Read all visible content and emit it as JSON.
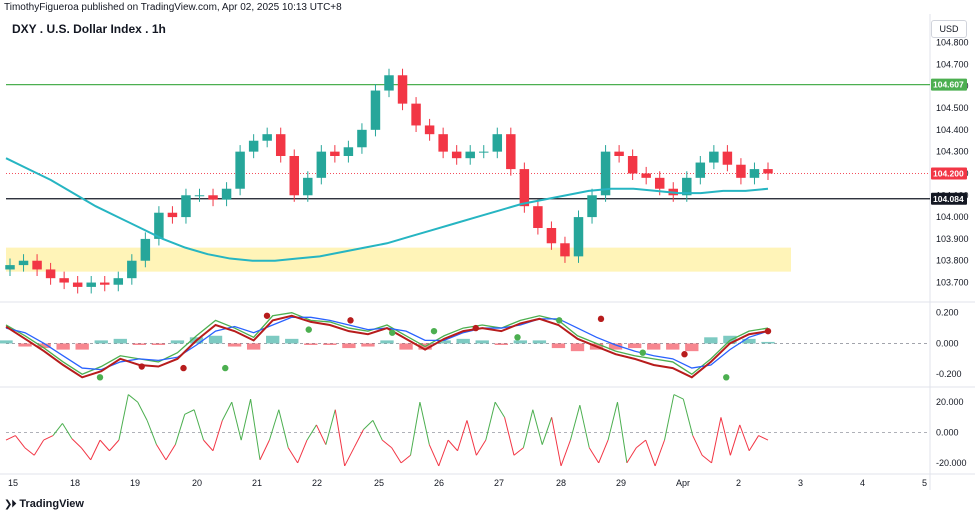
{
  "header": {
    "published": "TimothyFigueroa published on TradingView.com, Apr 02, 2025 10:13 UTC+8"
  },
  "currency_button": "USD",
  "footer": {
    "logo_icon": "tradingview-logo-icon",
    "brand": "TradingView"
  },
  "chart_data": [
    {
      "type": "candlestick",
      "title": "DXY . U.S. Dollar Index . 1h",
      "interval": "1h",
      "y_range": [
        103.62,
        104.83
      ],
      "y_ticks": [
        103.7,
        103.8,
        103.9,
        104.0,
        104.1,
        104.2,
        104.3,
        104.4,
        104.5,
        104.6,
        104.7,
        104.8
      ],
      "y_tick_labels": [
        "103.700",
        "103.800",
        "103.900",
        "104.000",
        "104.100",
        "104.200",
        "104.300",
        "104.400",
        "104.500",
        "104.600",
        "104.700",
        "104.800"
      ],
      "x_ticks": [
        "15",
        "18",
        "19",
        "20",
        "21",
        "22",
        "25",
        "26",
        "27",
        "28",
        "29",
        "Apr",
        "2",
        "3",
        "4",
        "5"
      ],
      "price_lines": [
        {
          "value": 104.607,
          "label": "104.607",
          "color": "#4caf50",
          "style": "solid"
        },
        {
          "value": 104.2,
          "label": "104.200",
          "color": "#f23645",
          "style": "dotted"
        },
        {
          "value": 104.084,
          "label": "104.084",
          "color": "#131722",
          "style": "solid"
        }
      ],
      "support_zone": {
        "from": 103.75,
        "to": 103.86,
        "color": "#fff3b0"
      },
      "moving_average": {
        "color": "#26b5c2",
        "values": [
          104.27,
          104.22,
          104.17,
          104.11,
          104.05,
          104.0,
          103.95,
          103.9,
          103.86,
          103.83,
          103.81,
          103.8,
          103.8,
          103.81,
          103.82,
          103.84,
          103.86,
          103.88,
          103.91,
          103.94,
          103.97,
          104.0,
          104.03,
          104.06,
          104.08,
          104.1,
          104.12,
          104.13,
          104.13,
          104.12,
          104.11,
          104.11,
          104.12,
          104.12,
          104.13
        ]
      },
      "candles": {
        "up_color": "#26a69a",
        "down_color": "#f23645",
        "close": [
          103.78,
          103.8,
          103.76,
          103.72,
          103.7,
          103.68,
          103.7,
          103.69,
          103.72,
          103.8,
          103.9,
          104.02,
          104.0,
          104.1,
          104.1,
          104.08,
          104.13,
          104.3,
          104.35,
          104.38,
          104.28,
          104.1,
          104.18,
          104.3,
          104.28,
          104.32,
          104.4,
          104.58,
          104.65,
          104.52,
          104.42,
          104.38,
          104.3,
          104.27,
          104.3,
          104.3,
          104.38,
          104.22,
          104.05,
          103.95,
          103.88,
          103.82,
          104.0,
          104.1,
          104.3,
          104.28,
          104.2,
          104.18,
          104.13,
          104.1,
          104.18,
          104.25,
          104.3,
          104.24,
          104.18,
          104.22,
          104.2
        ]
      }
    },
    {
      "type": "line",
      "title": "",
      "y_range": [
        -0.27,
        0.25
      ],
      "y_ticks": [
        -0.2,
        0.0,
        0.2
      ],
      "y_tick_labels": [
        "-0.200",
        "0.000",
        "0.200"
      ],
      "series": [
        {
          "color": "#4caf50",
          "values": [
            0.12,
            0.05,
            -0.03,
            -0.12,
            -0.2,
            -0.15,
            -0.08,
            -0.1,
            -0.12,
            -0.06,
            0.05,
            0.15,
            0.1,
            0.04,
            0.18,
            0.2,
            0.15,
            0.14,
            0.1,
            0.08,
            0.12,
            0.05,
            -0.02,
            0.05,
            0.1,
            0.12,
            0.1,
            0.15,
            0.18,
            0.15,
            0.05,
            0.0,
            -0.05,
            -0.08,
            -0.1,
            -0.12,
            -0.2,
            -0.1,
            0.02,
            0.08,
            0.1
          ]
        },
        {
          "color": "#2962ff",
          "values": [
            0.1,
            0.07,
            0.0,
            -0.08,
            -0.16,
            -0.17,
            -0.12,
            -0.1,
            -0.11,
            -0.09,
            -0.01,
            0.08,
            0.11,
            0.07,
            0.12,
            0.17,
            0.17,
            0.15,
            0.12,
            0.09,
            0.1,
            0.08,
            0.02,
            0.02,
            0.07,
            0.1,
            0.1,
            0.12,
            0.16,
            0.16,
            0.1,
            0.04,
            -0.01,
            -0.05,
            -0.08,
            -0.1,
            -0.16,
            -0.14,
            -0.04,
            0.04,
            0.08
          ]
        },
        {
          "color": "#b71c1c",
          "values": [
            0.11,
            0.03,
            -0.05,
            -0.14,
            -0.22,
            -0.18,
            -0.1,
            -0.14,
            -0.15,
            -0.1,
            0.02,
            0.12,
            0.08,
            0.02,
            0.15,
            0.18,
            0.14,
            0.12,
            0.08,
            0.06,
            0.1,
            0.03,
            -0.04,
            0.03,
            0.08,
            0.1,
            0.08,
            0.13,
            0.16,
            0.12,
            0.03,
            -0.02,
            -0.07,
            -0.1,
            -0.14,
            -0.16,
            -0.22,
            -0.12,
            0.0,
            0.06,
            0.08
          ]
        }
      ],
      "histogram": {
        "up_color": "#26a69a",
        "down_color": "#f23645",
        "values": [
          0.02,
          -0.02,
          -0.03,
          -0.04,
          -0.04,
          0.02,
          0.03,
          -0.01,
          -0.01,
          0.02,
          0.04,
          0.05,
          -0.02,
          -0.04,
          0.05,
          0.03,
          -0.01,
          -0.01,
          -0.03,
          -0.02,
          0.02,
          -0.04,
          -0.04,
          0.02,
          0.03,
          0.02,
          -0.01,
          0.02,
          0.02,
          -0.03,
          -0.05,
          -0.04,
          -0.04,
          -0.03,
          -0.04,
          -0.04,
          -0.05,
          0.04,
          0.05,
          0.03,
          0.01
        ]
      },
      "markers": {
        "values": [
          -0.22,
          -0.15,
          -0.16,
          -0.16,
          0.18,
          0.09,
          0.15,
          0.07,
          0.08,
          0.1,
          0.04,
          0.15,
          0.16,
          -0.06,
          -0.07,
          -0.22,
          0.08
        ],
        "colors": [
          "#4caf50",
          "#b71c1c",
          "#b71c1c",
          "#4caf50",
          "#b71c1c",
          "#4caf50",
          "#b71c1c",
          "#4caf50",
          "#4caf50",
          "#b71c1c",
          "#4caf50",
          "#4caf50",
          "#b71c1c",
          "#4caf50",
          "#b71c1c",
          "#4caf50",
          "#b71c1c"
        ]
      }
    },
    {
      "type": "line",
      "title": "",
      "y_range": [
        -26,
        28
      ],
      "y_ticks": [
        -20,
        0,
        20
      ],
      "y_tick_labels": [
        "-20.000",
        "0.000",
        "20.000"
      ],
      "series": [
        {
          "name": "",
          "colors": {
            "positive": "#4caf50",
            "negative": "#f23645"
          },
          "values": [
            -5,
            -2,
            -10,
            -15,
            -5,
            -2,
            6,
            -4,
            -10,
            -18,
            -5,
            -12,
            -5,
            25,
            20,
            8,
            -8,
            -18,
            -8,
            12,
            15,
            -5,
            -12,
            8,
            20,
            -5,
            22,
            -18,
            -5,
            15,
            -10,
            -20,
            -5,
            5,
            -8,
            15,
            -22,
            -10,
            2,
            8,
            -5,
            -10,
            -20,
            -15,
            20,
            -8,
            -22,
            -5,
            -12,
            8,
            -15,
            -5,
            20,
            10,
            -15,
            -10,
            15,
            -8,
            10,
            -22,
            -5,
            18,
            -10,
            -20,
            -5,
            20,
            -20,
            -10,
            -5,
            -22,
            -5,
            25,
            22,
            -2,
            -15,
            -20,
            10,
            -15,
            5,
            -12,
            -2,
            -5
          ]
        }
      ]
    }
  ]
}
